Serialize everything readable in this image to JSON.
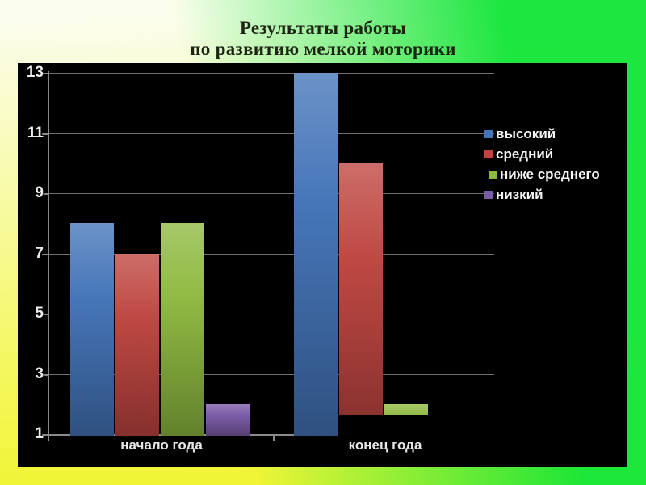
{
  "slide": {
    "title_line1": "Результаты работы",
    "title_line2": "по развитию мелкой моторики",
    "title_color": "#1e2412",
    "background": {
      "top_left": "#FBFDEC",
      "mid_left_yellow": "#F4F75A",
      "bottom_left": "#EFF42F",
      "green": "#11E537"
    }
  },
  "chart_data": {
    "type": "bar",
    "title": "Результаты работы по развитию мелкой моторики",
    "categories": [
      "начало года",
      "конец года"
    ],
    "series": [
      {
        "name": "высокий",
        "color": "#4374B8",
        "values": [
          8,
          13
        ]
      },
      {
        "name": "средний",
        "color": "#BE4540",
        "values": [
          7,
          10
        ]
      },
      {
        "name": "ниже среднего",
        "color": "#8EB93F",
        "values": [
          8,
          2
        ]
      },
      {
        "name": "низкий",
        "color": "#7A5BA6",
        "values": [
          2,
          1
        ]
      }
    ],
    "ylim": [
      1,
      13
    ],
    "yticks": [
      1,
      3,
      5,
      7,
      9,
      11,
      13
    ],
    "grid": true,
    "legend_position": "right",
    "plot_bg": "#000000",
    "gridline_color": "#6f6f6f",
    "axis_color": "#8a8a8a",
    "tick_label_color": "#ececec",
    "category_label_color": "#e8e8e8",
    "legend_text_color": "#f5f5f5"
  }
}
